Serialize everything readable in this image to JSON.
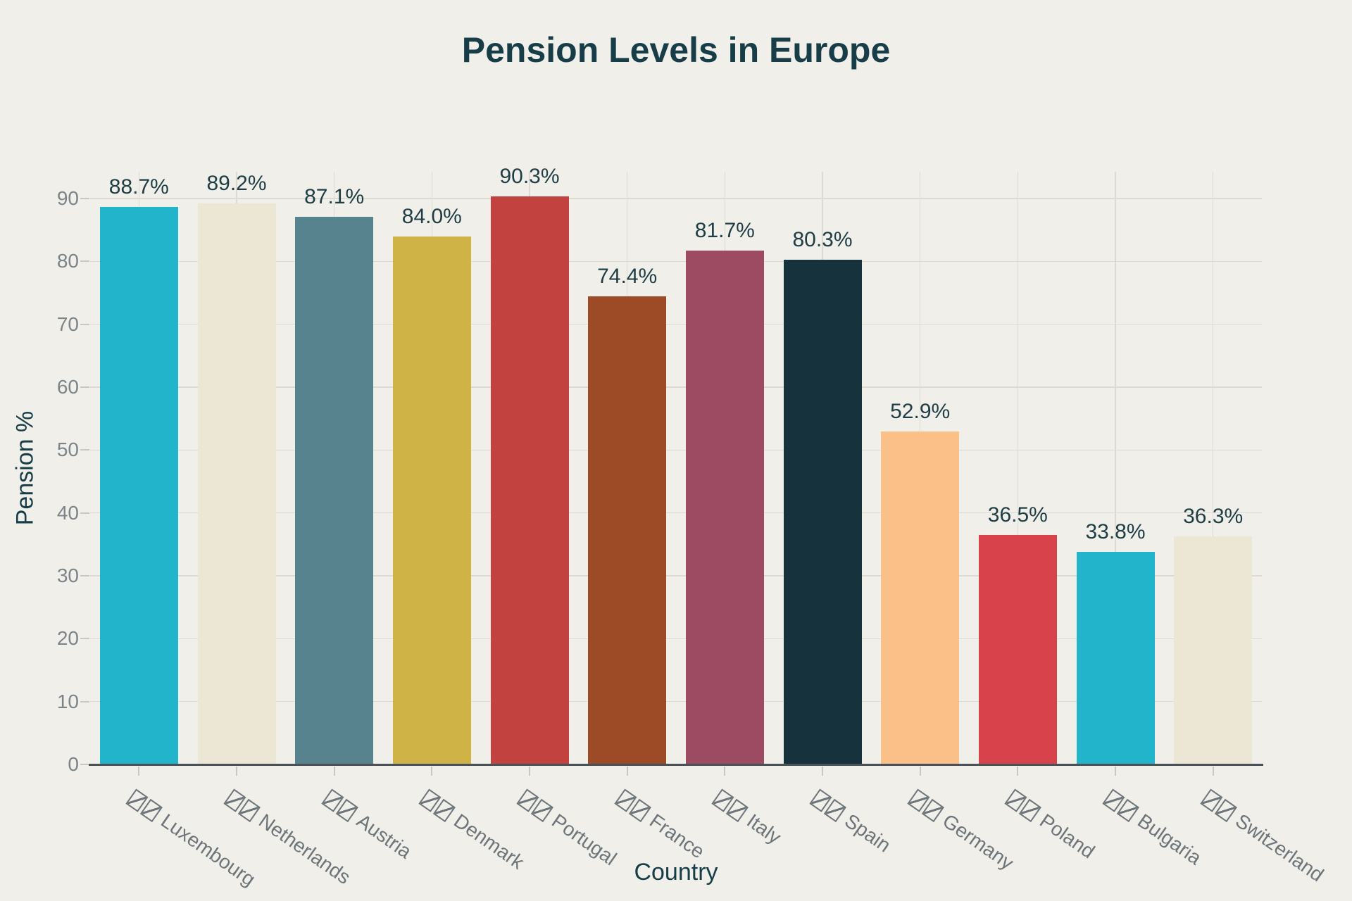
{
  "chart_data": {
    "type": "bar",
    "title": "Pension Levels in Europe",
    "xlabel": "Country",
    "ylabel": "Pension %",
    "categories": [
      "Luxembourg",
      "Netherlands",
      "Austria",
      "Denmark",
      "Portugal",
      "France",
      "Italy",
      "Spain",
      "Germany",
      "Poland",
      "Bulgaria",
      "Switzerland"
    ],
    "values": [
      88.7,
      89.2,
      87.1,
      84.0,
      90.3,
      74.4,
      81.7,
      80.3,
      52.9,
      36.5,
      33.8,
      36.3
    ],
    "value_labels": [
      "88.7%",
      "89.2%",
      "87.1%",
      "84.0%",
      "90.3%",
      "74.4%",
      "81.7%",
      "80.3%",
      "52.9%",
      "36.5%",
      "33.8%",
      "36.3%"
    ],
    "bar_colors": [
      "#21b4ca",
      "#ebe7d4",
      "#57838f",
      "#d0b347",
      "#c24240",
      "#9d4a27",
      "#9d4b63",
      "#16323d",
      "#fac088",
      "#d8424b",
      "#21b4ca",
      "#ebe7d4"
    ],
    "yticks": [
      0,
      10,
      20,
      30,
      40,
      50,
      60,
      70,
      80,
      90
    ],
    "ylim": [
      0,
      94.3
    ],
    "grid": true,
    "legend": "none",
    "flag_boxes_per_label": 2,
    "category_flag_note": "each country label is preceded by two missing-glyph (tofu) boxes where flag emoji failed to render",
    "styles": {
      "background": "#f0efe9",
      "gridline": "#dcdad3",
      "axis_line": "#4b5257",
      "tick_mark": "#c9c7c1",
      "y_tick_label_color": "#7c8489",
      "x_tick_label_color": "#6d757a",
      "value_label_color": "#1e3d45",
      "title_color": "#173e48",
      "axis_title_color": "#173e48"
    }
  }
}
